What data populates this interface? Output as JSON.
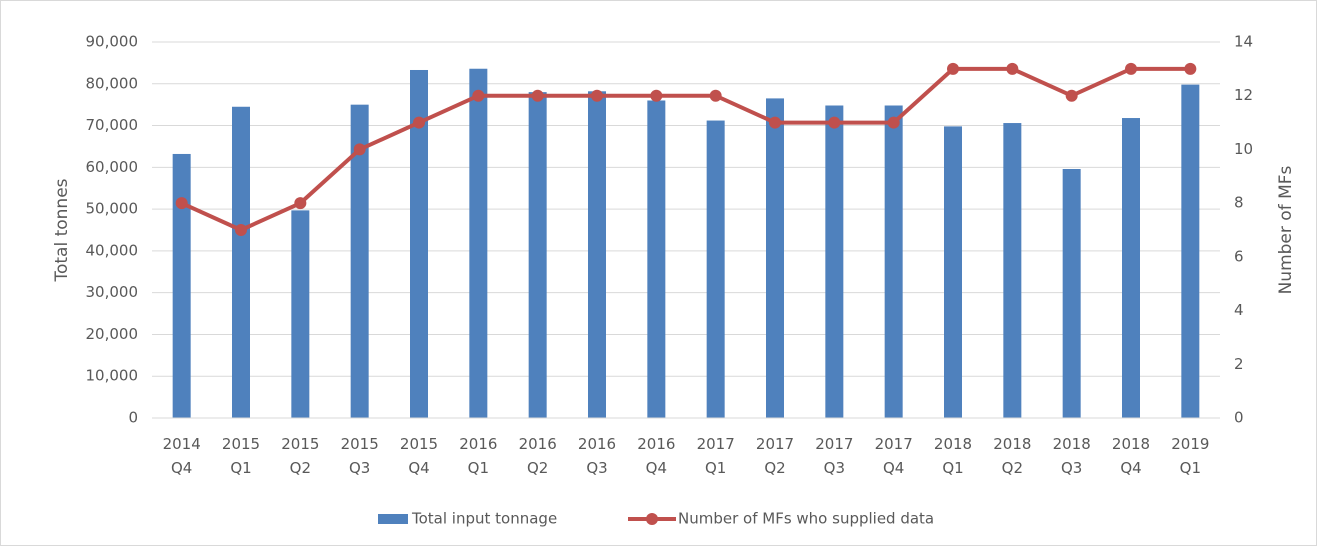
{
  "chart_data": {
    "type": "bar-line",
    "categories": [
      "2014 Q4",
      "2015 Q1",
      "2015 Q2",
      "2015 Q3",
      "2015 Q4",
      "2016 Q1",
      "2016 Q2",
      "2016 Q3",
      "2016 Q4",
      "2017 Q1",
      "2017 Q2",
      "2017 Q3",
      "2017 Q4",
      "2018 Q1",
      "2018 Q2",
      "2018 Q3",
      "2018 Q4",
      "2019 Q1"
    ],
    "series": [
      {
        "name": "Total input tonnage",
        "type": "bar",
        "color": "#4f81bd",
        "values": [
          63200,
          74500,
          49700,
          75000,
          83300,
          83600,
          78000,
          78200,
          76000,
          71200,
          76500,
          74800,
          74800,
          69800,
          70600,
          59600,
          71800,
          79800
        ]
      },
      {
        "name": "Number of MFs who supplied data",
        "type": "line",
        "axis": "y2",
        "color": "#c0504d",
        "values": [
          8,
          7,
          8,
          10,
          11,
          12,
          12,
          12,
          12,
          12,
          11,
          11,
          11,
          13,
          13,
          12,
          13,
          13
        ]
      }
    ],
    "ylabel": "Total tonnes",
    "y2label": "Number of MFs",
    "ylim": [
      0,
      90000
    ],
    "yticks": [
      0,
      {
        "value": 10000,
        "label": "10,000"
      },
      {
        "value": 20000,
        "label": "20,000"
      },
      {
        "value": 30000,
        "label": "30,000"
      },
      {
        "value": 40000,
        "label": "40,000"
      },
      {
        "value": 50000,
        "label": "50,000"
      },
      {
        "value": 60000,
        "label": "60,000"
      },
      {
        "value": 70000,
        "label": "70,000"
      },
      {
        "value": 80000,
        "label": "80,000"
      },
      {
        "value": 90000,
        "label": "90,000"
      }
    ],
    "y2lim": [
      0,
      14
    ],
    "y2ticks": [
      0,
      2,
      4,
      6,
      8,
      10,
      12,
      14
    ],
    "grid": true,
    "legend": "bottom"
  }
}
